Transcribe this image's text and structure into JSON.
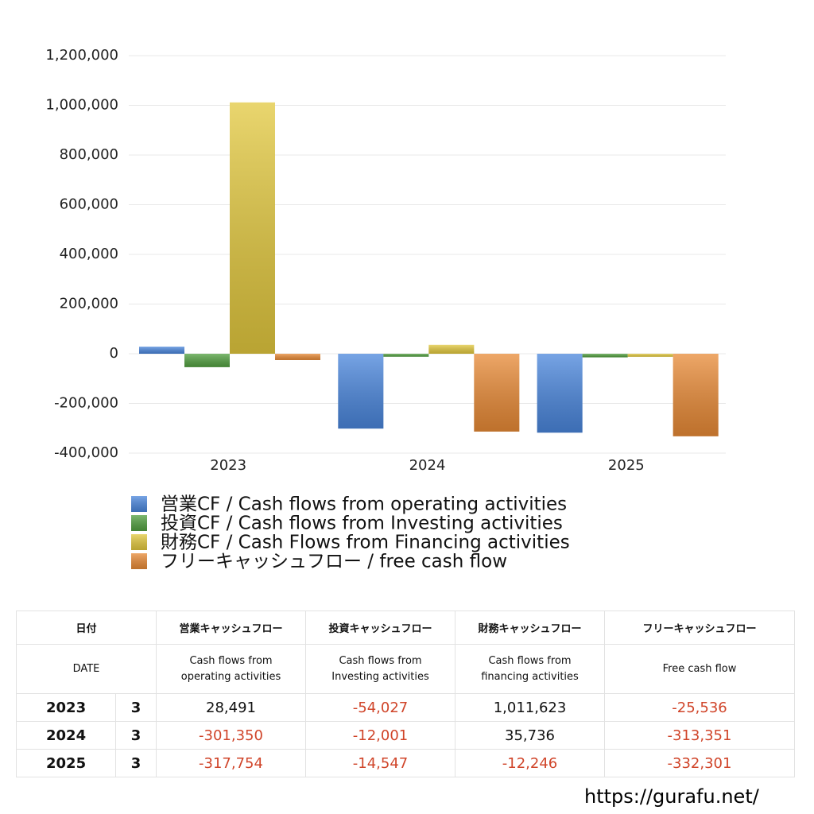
{
  "chart_data": {
    "type": "bar",
    "categories": [
      "2023",
      "2024",
      "2025"
    ],
    "series": [
      {
        "name": "営業CF / Cash flows from operating activities",
        "color": "#4a86dc",
        "values": [
          28491,
          -301350,
          -317754
        ]
      },
      {
        "name": "投資CF / Cash flows from Investing activities",
        "color": "#52a040",
        "values": [
          -54027,
          -12001,
          -14547
        ]
      },
      {
        "name": "財務CF / Cash Flows from Financing activities",
        "color": "#e2c83e",
        "values": [
          1011623,
          35736,
          -12246
        ]
      },
      {
        "name": "フリーキャッシュフロー / free cash flow",
        "color": "#e88a36",
        "values": [
          -25536,
          -313351,
          -332301
        ]
      }
    ],
    "ylim": [
      -400000,
      1200000
    ],
    "yticks": [
      {
        "value": -400000,
        "label": "-400,000"
      },
      {
        "value": -200000,
        "label": "-200,000"
      },
      0,
      {
        "value": 200000,
        "label": "200,000"
      },
      {
        "value": 400000,
        "label": "400,000"
      },
      {
        "value": 600000,
        "label": "600,000"
      },
      {
        "value": 800000,
        "label": "800,000"
      },
      {
        "value": 1000000,
        "label": "1,000,000"
      },
      {
        "value": 1200000,
        "label": "1,200,000"
      }
    ],
    "grid": true,
    "legend": "bottom"
  },
  "table": {
    "header": [
      [
        "日付",
        "営業キャッシュフロー",
        "投資キャッシュフロー",
        "財務キャッシュフロー",
        "フリーキャッシュフロー"
      ],
      [
        "DATE",
        "Cash flows from\noperating activities",
        "Cash flows from\nInvesting activities",
        "Cash flows from\nfinancing activities",
        "Free cash flow"
      ]
    ],
    "rows": [
      [
        "2023",
        "3",
        "28,491",
        "-54,027",
        "1,011,623",
        "-25,536"
      ],
      [
        "2024",
        "3",
        "-301,350",
        "-12,001",
        "35,736",
        "-313,351"
      ],
      [
        "2025",
        "3",
        "-317,754",
        "-14,547",
        "-12,246",
        "-332,301"
      ]
    ]
  },
  "footer": "https://gurafu.net/"
}
